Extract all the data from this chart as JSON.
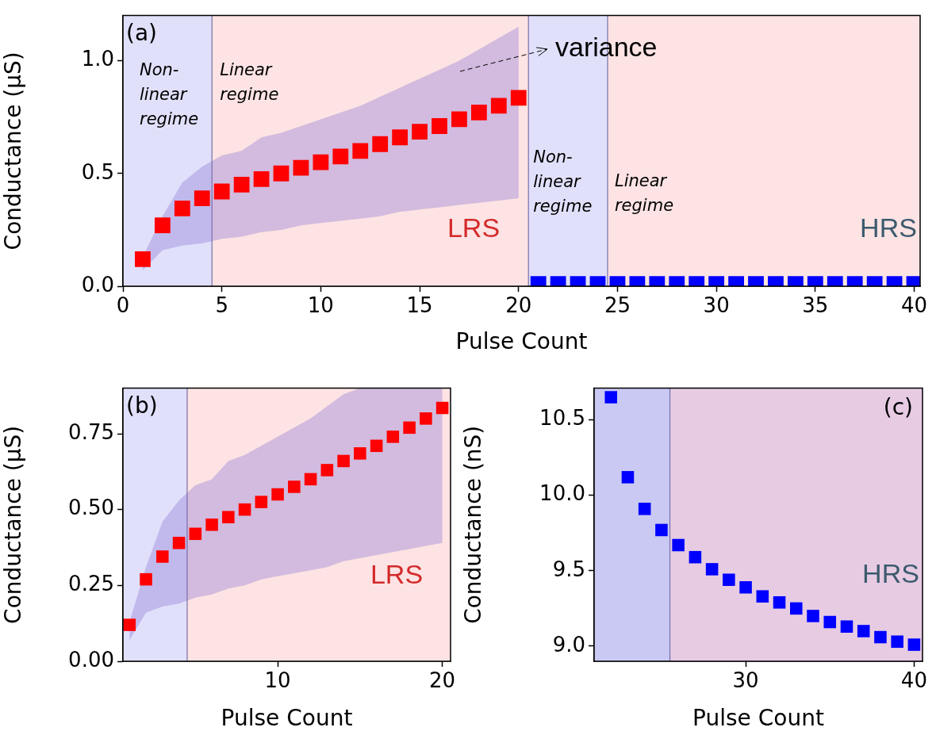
{
  "chart_data": [
    {
      "type": "scatter",
      "xlabel": "Pulse Count",
      "ylabel": "Conductance (μS)",
      "xlim": [
        0,
        40.3
      ],
      "ylim": [
        0,
        1.2
      ],
      "xticks": [
        0,
        5,
        10,
        15,
        20,
        25,
        30,
        35,
        40
      ],
      "yticks": [
        {
          "value": 0,
          "label": "0.0"
        },
        0.5,
        {
          "value": 1,
          "label": "1.0"
        }
      ],
      "marker": "square",
      "legend": false,
      "grid": false,
      "series": [
        {
          "color": "#ff0000",
          "x": [
            1,
            2,
            3,
            4,
            5,
            6,
            7,
            8,
            9,
            10,
            11,
            12,
            13,
            14,
            15,
            16,
            17,
            18,
            19,
            20
          ],
          "values": [
            0.12,
            0.27,
            0.345,
            0.39,
            0.42,
            0.45,
            0.475,
            0.5,
            0.525,
            0.55,
            0.575,
            0.6,
            0.63,
            0.66,
            0.685,
            0.71,
            0.74,
            0.77,
            0.8,
            0.835
          ],
          "lower": [
            0.07,
            0.16,
            0.18,
            0.19,
            0.21,
            0.22,
            0.24,
            0.25,
            0.27,
            0.28,
            0.29,
            0.3,
            0.31,
            0.33,
            0.34,
            0.35,
            0.36,
            0.37,
            0.38,
            0.39
          ],
          "upper": [
            0.13,
            0.31,
            0.46,
            0.53,
            0.58,
            0.6,
            0.66,
            0.68,
            0.71,
            0.74,
            0.77,
            0.8,
            0.84,
            0.88,
            0.92,
            0.96,
            1.0,
            1.05,
            1.1,
            1.15
          ]
        },
        {
          "color": "#0000ff",
          "x": [
            21,
            22,
            23,
            24,
            25,
            26,
            27,
            28,
            29,
            30,
            31,
            32,
            33,
            34,
            35,
            36,
            37,
            38,
            39,
            40
          ],
          "values": [
            0.01,
            0.01,
            0.01,
            0.01,
            0.01,
            0.01,
            0.01,
            0.01,
            0.01,
            0.01,
            0.01,
            0.01,
            0.01,
            0.01,
            0.01,
            0.01,
            0.01,
            0.01,
            0.01,
            0.01
          ]
        }
      ],
      "bands": [
        {
          "axis": "x",
          "from": 0,
          "to": 4.5,
          "label": "Non-\nlinear\nregime",
          "color": "#e0e0fb"
        },
        {
          "axis": "x",
          "from": 4.5,
          "to": 20.5,
          "label": "Linear\nregime",
          "color": "#fde3e3"
        },
        {
          "axis": "x",
          "from": 20.5,
          "to": 24.5,
          "label": "Non-\nlinear\nregime",
          "color": "#e0e0fb"
        },
        {
          "axis": "x",
          "from": 24.5,
          "to": 40.3,
          "label": "Linear\nregime",
          "color": "#fde3e3"
        }
      ],
      "ref_lines": [
        {
          "axis": "x",
          "value": 4.5,
          "color": "#786eaa"
        },
        {
          "axis": "x",
          "value": 20.5,
          "color": "#786eaa"
        },
        {
          "axis": "x",
          "value": 24.5,
          "color": "#786eaa"
        }
      ],
      "annotations": [
        "(a)",
        "variance",
        "LRS",
        "HRS"
      ]
    },
    {
      "type": "scatter",
      "xlabel": "Pulse Count",
      "ylabel": "Conductance (μS)",
      "xlim": [
        0.6,
        20.5
      ],
      "ylim": [
        0,
        0.9
      ],
      "xticks": [
        10,
        20
      ],
      "yticks": [
        {
          "value": 0,
          "label": "0.00"
        },
        0.25,
        {
          "value": 0.5,
          "label": "0.50"
        },
        0.75
      ],
      "marker": "square",
      "legend": false,
      "grid": false,
      "series": [
        {
          "color": "#ff0000",
          "x": [
            1,
            2,
            3,
            4,
            5,
            6,
            7,
            8,
            9,
            10,
            11,
            12,
            13,
            14,
            15,
            16,
            17,
            18,
            19,
            20
          ],
          "values": [
            0.12,
            0.27,
            0.345,
            0.39,
            0.42,
            0.45,
            0.475,
            0.5,
            0.525,
            0.55,
            0.575,
            0.6,
            0.63,
            0.66,
            0.685,
            0.71,
            0.74,
            0.77,
            0.8,
            0.835
          ],
          "lower": [
            0.07,
            0.16,
            0.18,
            0.19,
            0.21,
            0.22,
            0.24,
            0.25,
            0.27,
            0.28,
            0.29,
            0.3,
            0.31,
            0.33,
            0.34,
            0.35,
            0.36,
            0.37,
            0.38,
            0.39
          ],
          "upper": [
            0.13,
            0.31,
            0.46,
            0.53,
            0.58,
            0.6,
            0.66,
            0.68,
            0.71,
            0.74,
            0.77,
            0.8,
            0.84,
            0.88,
            0.9,
            0.9,
            0.9,
            0.9,
            0.9,
            0.9
          ]
        }
      ],
      "bands": [
        {
          "axis": "x",
          "from": 0.6,
          "to": 4.5,
          "color": "#e0e0fb"
        },
        {
          "axis": "x",
          "from": 4.5,
          "to": 20.5,
          "color": "#fde3e3"
        }
      ],
      "ref_lines": [
        {
          "axis": "x",
          "value": 4.5,
          "color": "#786eaa"
        }
      ],
      "annotations": [
        "(b)",
        "LRS"
      ]
    },
    {
      "type": "scatter",
      "xlabel": "Pulse Count",
      "ylabel": "Conductance (nS)",
      "xlim": [
        21,
        40.5
      ],
      "ylim": [
        8.9,
        10.71
      ],
      "xticks": [
        30,
        40
      ],
      "yticks": [
        {
          "value": 9,
          "label": "9.0"
        },
        9.5,
        {
          "value": 10,
          "label": "10.0"
        },
        10.5
      ],
      "marker": "square",
      "legend": false,
      "grid": false,
      "series": [
        {
          "color": "#0000ff",
          "x": [
            22,
            23,
            24,
            25,
            26,
            27,
            28,
            29,
            30,
            31,
            32,
            33,
            34,
            35,
            36,
            37,
            38,
            39,
            40
          ],
          "values": [
            10.65,
            10.12,
            9.91,
            9.77,
            9.67,
            9.59,
            9.51,
            9.44,
            9.39,
            9.33,
            9.29,
            9.25,
            9.2,
            9.16,
            9.13,
            9.1,
            9.06,
            9.03,
            9.01
          ]
        }
      ],
      "bands": [
        {
          "axis": "x",
          "from": 21,
          "to": 25.5,
          "color": "#c9c9f4"
        },
        {
          "axis": "x",
          "from": 25.5,
          "to": 40.5,
          "color": "#e6cbe3"
        }
      ],
      "ref_lines": [
        {
          "axis": "x",
          "value": 25.5,
          "color": "#786eaa"
        }
      ],
      "annotations": [
        "(c)",
        "HRS"
      ]
    }
  ]
}
